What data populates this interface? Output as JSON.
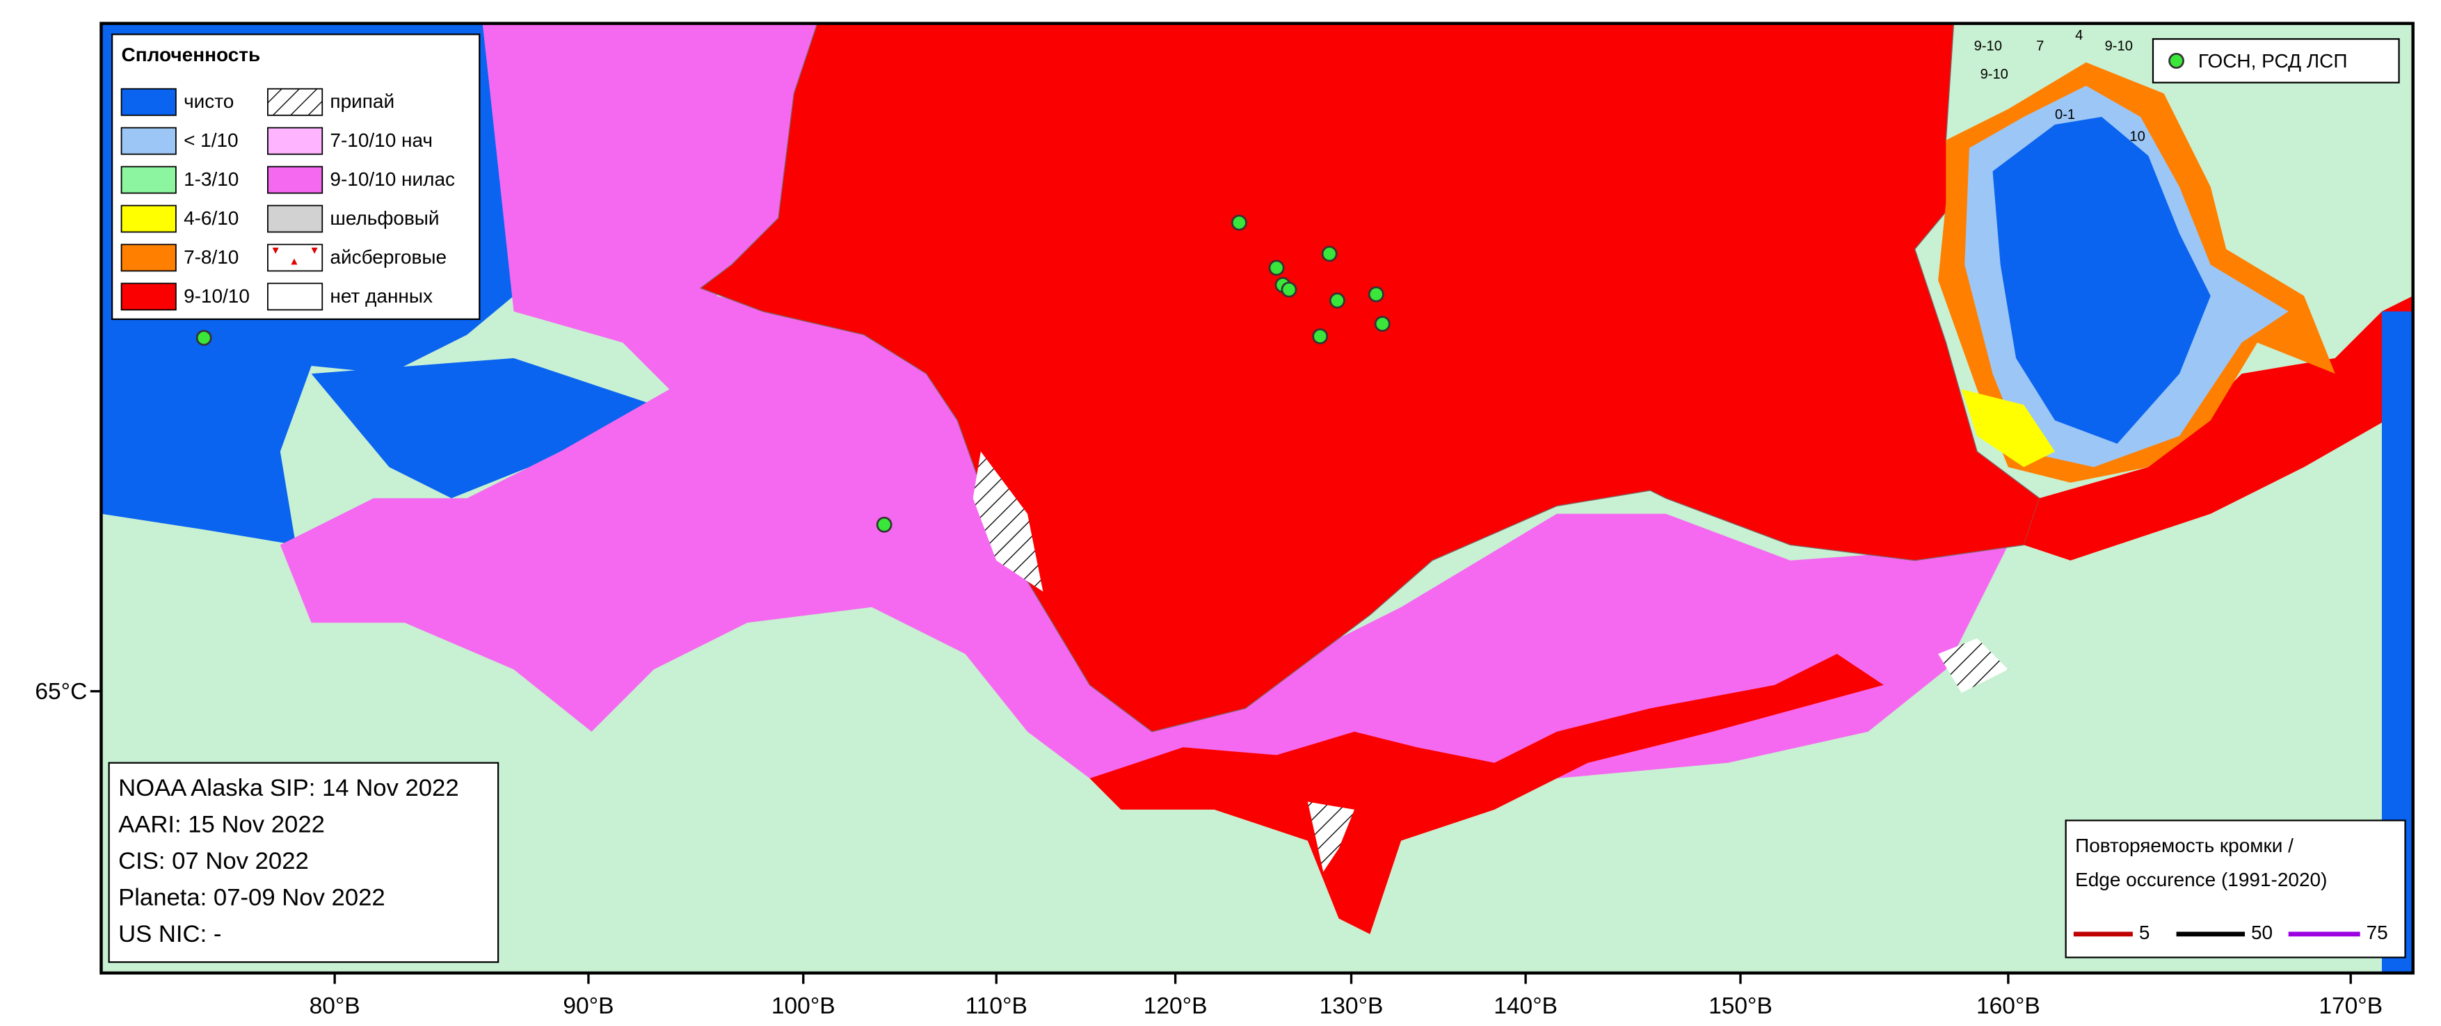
{
  "legend": {
    "title": "Сплоченность",
    "items": [
      "чисто",
      "< 1/10",
      "1-3/10",
      "4-6/10",
      "7-8/10",
      "9-10/10",
      "припай",
      "7-10/10 нач",
      "9-10/10 нилас",
      "шельфовый",
      "айсберговые",
      "нет данных"
    ]
  },
  "stations_legend": "ГОСН, РСД ЛСП",
  "sources": [
    "NOAA Alaska SIP: 14 Nov 2022",
    "AARI: 15 Nov 2022",
    "CIS: 07 Nov 2022",
    "Planeta: 07-09 Nov 2022",
    "US NIC: -"
  ],
  "edge_legend": {
    "title": [
      "Повторяемость кромки /",
      "Edge occurence (1991-2020)"
    ],
    "items": [
      "5",
      "50",
      "75"
    ]
  },
  "axis": {
    "longitudes": [
      "80°В",
      "90°В",
      "100°В",
      "110°В",
      "120°В",
      "130°В",
      "140°В",
      "150°В",
      "160°В",
      "170°В"
    ],
    "latitude": "65°С"
  },
  "map_labels": [
    "9-10",
    "9-10",
    "7",
    "4",
    "9-10",
    "0-1",
    "10"
  ]
}
